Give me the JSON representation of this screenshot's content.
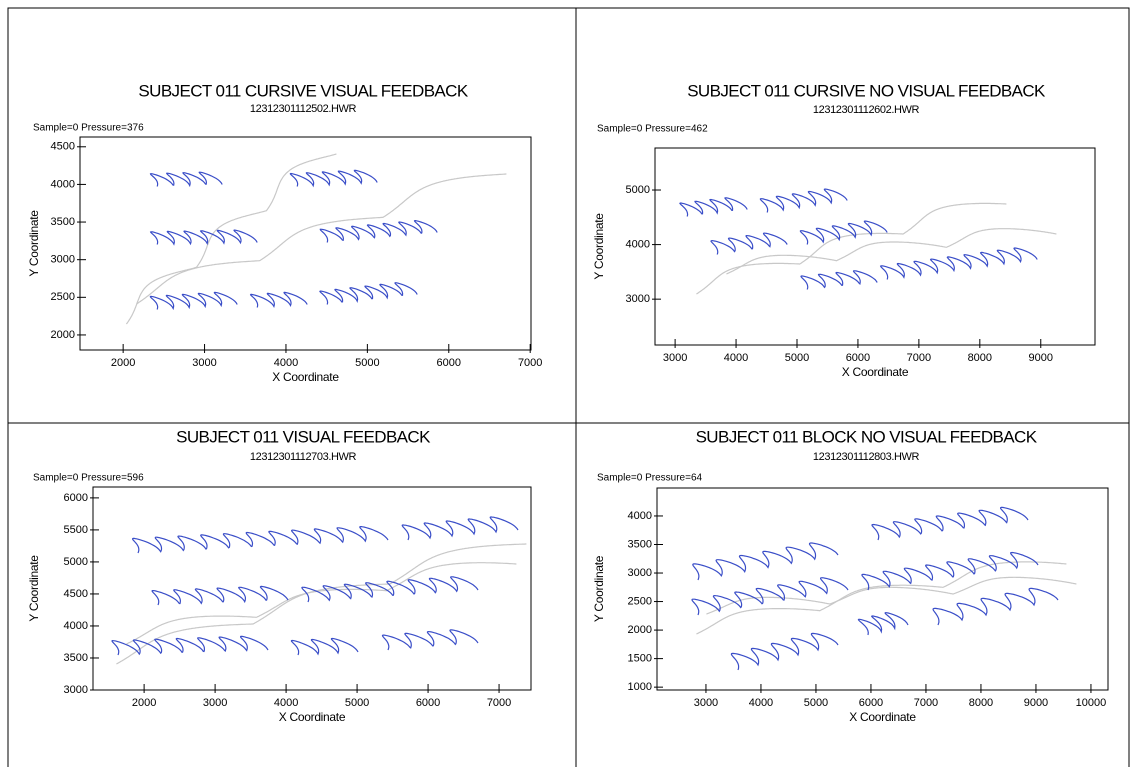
{
  "chart_data": [
    {
      "type": "line",
      "title": "SUBJECT 011 CURSIVE VISUAL FEEDBACK",
      "subtitle": "12312301112502.HWR",
      "annotation": "Sample=0 Pressure=376",
      "x_label": "X Coordinate",
      "y_label": "Y Coordinate",
      "xlim": [
        1470,
        7010
      ],
      "ylim": [
        1800,
        4630
      ],
      "xticks": [
        2000,
        3000,
        4000,
        5000,
        6000,
        7000
      ],
      "yticks": [
        2000,
        2500,
        3000,
        3500,
        4000,
        4500
      ]
    },
    {
      "type": "line",
      "title": "SUBJECT 011 CURSIVE NO VISUAL FEEDBACK",
      "subtitle": "12312301112602.HWR",
      "annotation": "Sample=0 Pressure=462",
      "x_label": "X Coordinate",
      "y_label": "Y Coordinate",
      "xlim": [
        2670,
        9890
      ],
      "ylim": [
        2160,
        5770
      ],
      "xticks": [
        3000,
        4000,
        5000,
        6000,
        7000,
        8000,
        9000
      ],
      "yticks": [
        3000,
        4000,
        5000
      ]
    },
    {
      "type": "line",
      "title": "SUBJECT 011 VISUAL FEEDBACK",
      "subtitle": "12312301112703.HWR",
      "annotation": "Sample=0 Pressure=596",
      "x_label": "X Coordinate",
      "y_label": "Y Coordinate",
      "xlim": [
        1280,
        7450
      ],
      "ylim": [
        3000,
        6170
      ],
      "xticks": [
        2000,
        3000,
        4000,
        5000,
        6000,
        7000
      ],
      "yticks": [
        3000,
        3500,
        4000,
        4500,
        5000,
        5500,
        6000
      ]
    },
    {
      "type": "line",
      "title": "SUBJECT 011 BLOCK NO VISUAL FEEDBACK",
      "subtitle": "12312301112803.HWR",
      "annotation": "Sample=0 Pressure=64",
      "x_label": "X Coordinate",
      "y_label": "Y Coordinate",
      "xlim": [
        2110,
        10310
      ],
      "ylim": [
        950,
        4490
      ],
      "xticks": [
        3000,
        4000,
        5000,
        6000,
        7000,
        8000,
        9000,
        10000
      ],
      "yticks": [
        1000,
        1500,
        2000,
        2500,
        3000,
        3500,
        4000
      ]
    }
  ]
}
